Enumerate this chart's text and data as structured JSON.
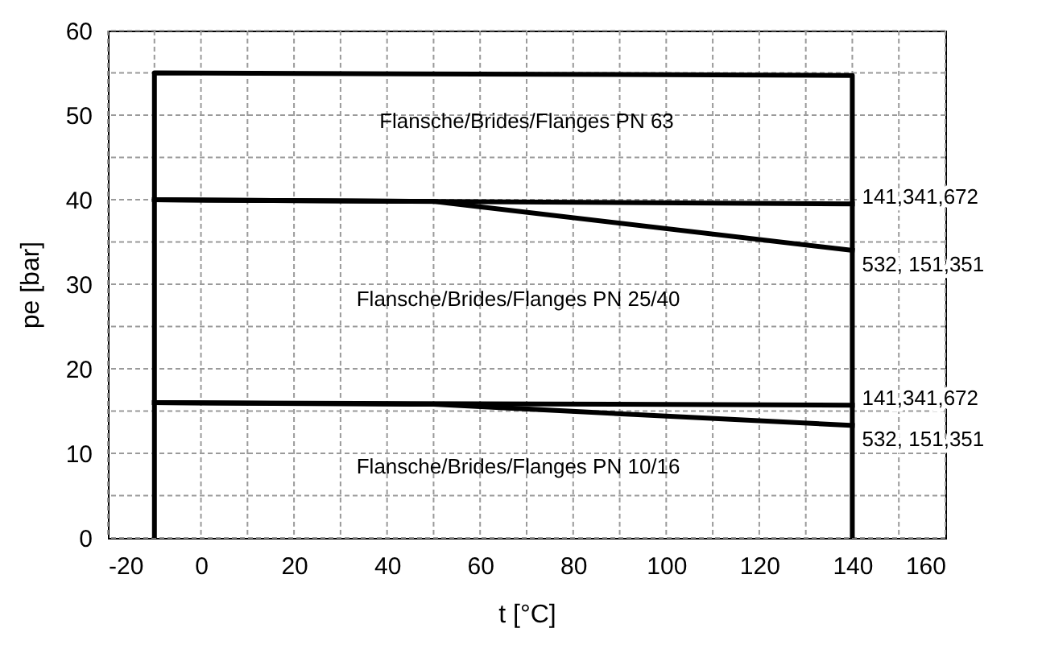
{
  "chart_data": {
    "type": "line",
    "xlabel": "t [°C]",
    "ylabel": "pe [bar]",
    "xlim": [
      -20,
      160
    ],
    "ylim": [
      0,
      60
    ],
    "xticks": [
      -20,
      {
        "value": -10,
        "label": null
      },
      0,
      {
        "value": 10,
        "label": null
      },
      20,
      {
        "value": 30,
        "label": null
      },
      40,
      {
        "value": 50,
        "label": null
      },
      60,
      {
        "value": 70,
        "label": null
      },
      80,
      {
        "value": 90,
        "label": null
      },
      100,
      {
        "value": 110,
        "label": null
      },
      120,
      {
        "value": 130,
        "label": null
      },
      140,
      {
        "value": 150,
        "label": null
      },
      160
    ],
    "yticks": [
      0,
      {
        "value": 5,
        "label": null
      },
      10,
      {
        "value": 15,
        "label": null
      },
      20,
      {
        "value": 25,
        "label": null
      },
      30,
      {
        "value": 35,
        "label": null
      },
      40,
      {
        "value": 45,
        "label": null
      },
      50,
      {
        "value": 55,
        "label": null
      },
      60
    ],
    "grid": true,
    "legend": false,
    "marker": "none",
    "line_style": "solid",
    "series": [
      {
        "color": "#000000",
        "x": [
          -10,
          -10,
          140,
          140
        ],
        "values": [
          0,
          55,
          54.7,
          0
        ]
      },
      {
        "name": "141,341,672",
        "color": "#000000",
        "x": [
          -10,
          140
        ],
        "values": [
          40,
          39.5
        ]
      },
      {
        "name": "532, 151,351",
        "color": "#000000",
        "x": [
          -10,
          50,
          140
        ],
        "values": [
          40,
          39.8,
          34
        ]
      },
      {
        "name": "141,341,672",
        "color": "#000000",
        "x": [
          -10,
          140
        ],
        "values": [
          16,
          15.7
        ]
      },
      {
        "name": "532, 151,351",
        "color": "#000000",
        "x": [
          -10,
          50,
          140
        ],
        "values": [
          16,
          15.8,
          13.3
        ]
      }
    ],
    "annotations": [
      "Flansche/Brides/Flanges  PN 63",
      "Flansche/Brides/Flanges  PN 25/40",
      "Flansche/Brides/Flanges  PN 10/16"
    ]
  }
}
